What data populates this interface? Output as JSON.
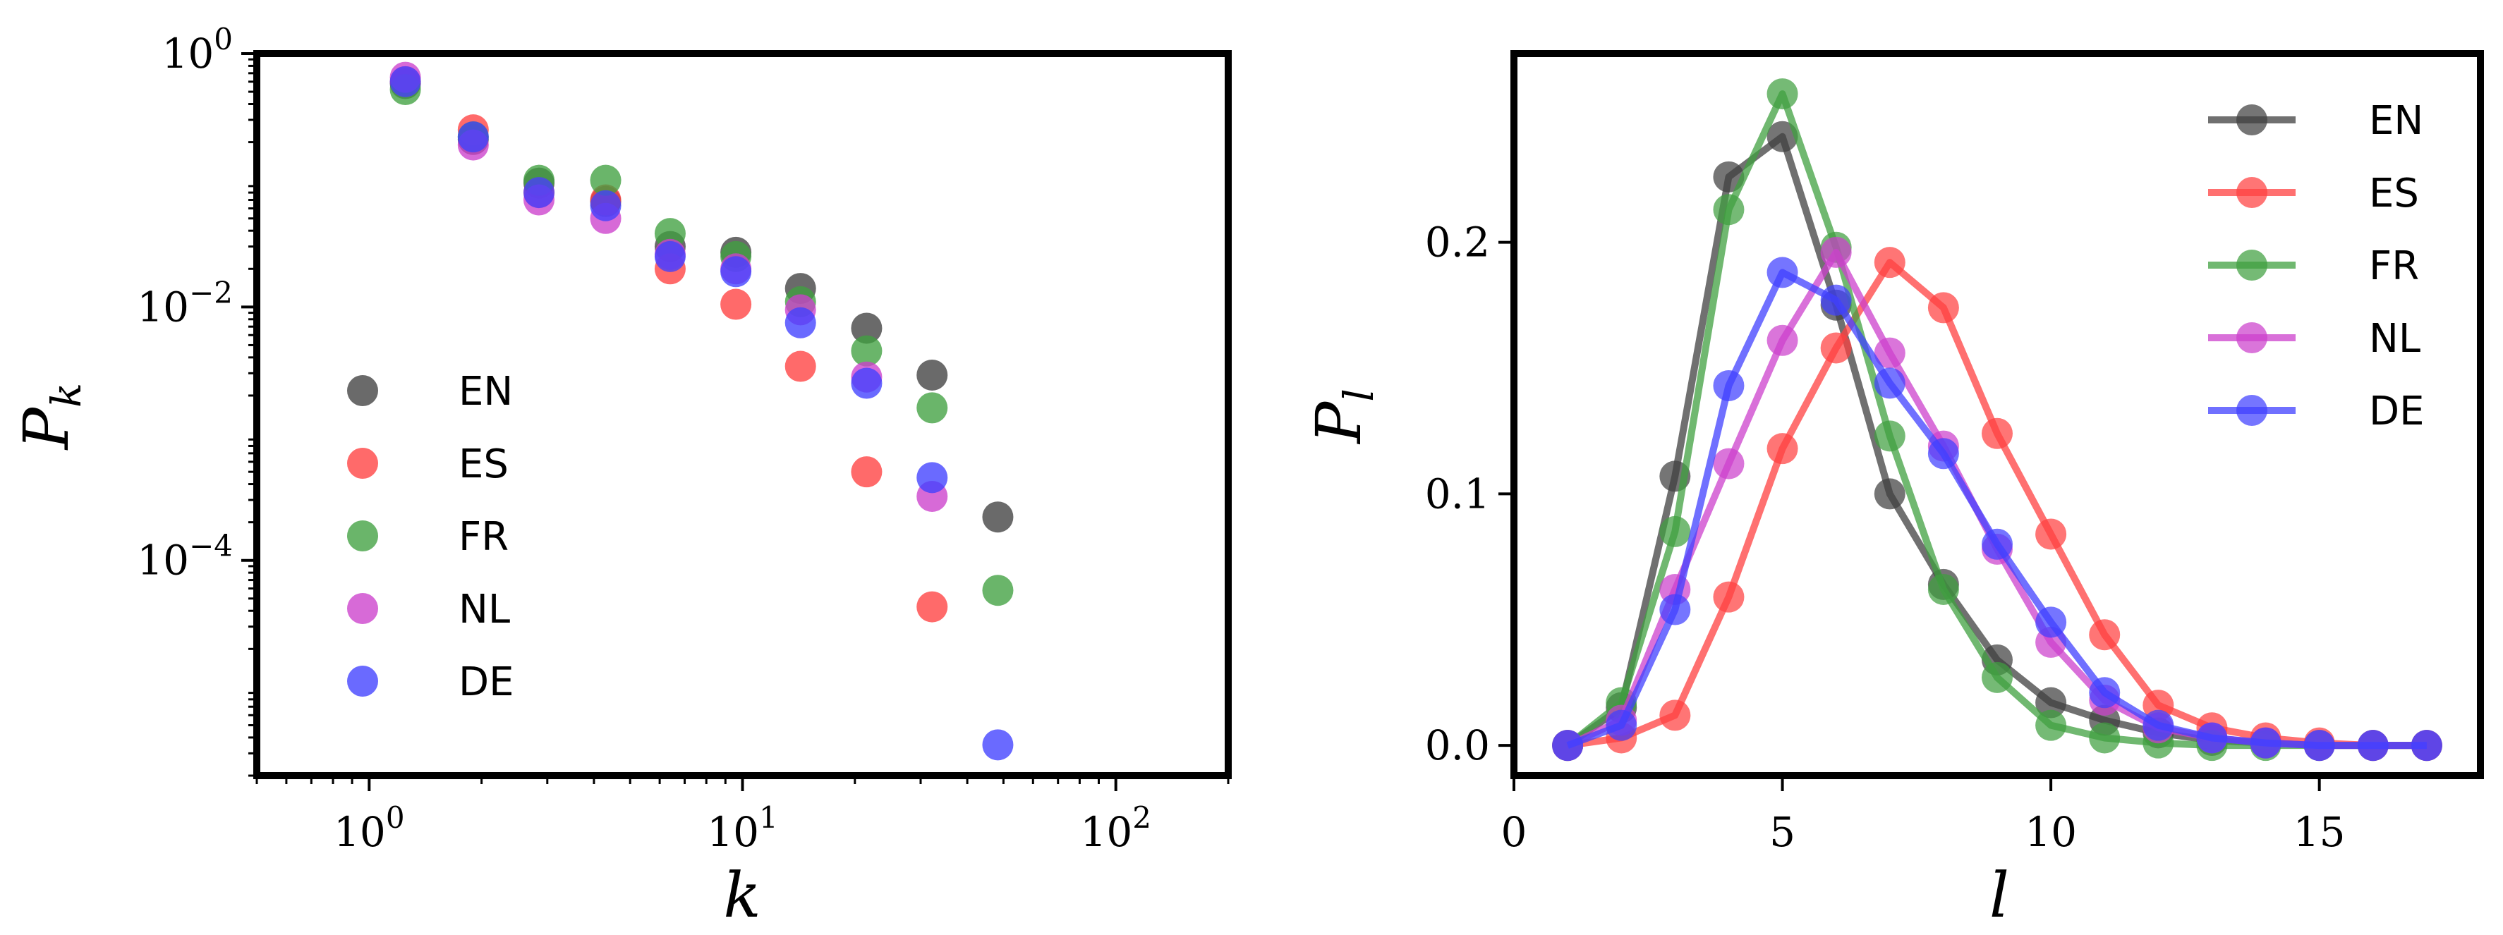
{
  "chart_data": [
    {
      "type": "scatter",
      "xscale": "log",
      "yscale": "log",
      "xlim": [
        0.5,
        200
      ],
      "ylim": [
        2e-06,
        1
      ],
      "xticks": [
        {
          "value": 1,
          "base": "10",
          "exp": "0"
        },
        {
          "value": 10,
          "base": "10",
          "exp": "1"
        },
        {
          "value": 100,
          "base": "10",
          "exp": "2"
        }
      ],
      "yticks": [
        {
          "value": 1,
          "base": "10",
          "exp": "0"
        },
        {
          "value": 0.01,
          "base": "10",
          "exp": "−2"
        },
        {
          "value": 0.0001,
          "base": "10",
          "exp": "−4"
        }
      ],
      "xlabel": "k",
      "ylabel": {
        "base": "P",
        "sub": "k"
      },
      "legend_position": "left",
      "x": [
        1.25,
        1.9,
        2.85,
        4.3,
        6.4,
        9.6,
        14.3,
        21.5,
        32.2,
        48.3
      ],
      "series": [
        {
          "name": "EN",
          "color": "#404040",
          "values": [
            0.58,
            0.21,
            0.095,
            0.068,
            0.03,
            0.027,
            0.014,
            0.0068,
            0.0029,
            0.00022
          ]
        },
        {
          "name": "ES",
          "color": "#ff4040",
          "values": [
            0.6,
            0.25,
            0.08,
            0.07,
            0.02,
            0.0105,
            0.0034,
            0.0005,
            4.3e-05,
            null
          ]
        },
        {
          "name": "FR",
          "color": "#40a040",
          "values": [
            0.52,
            0.22,
            0.1,
            0.1,
            0.038,
            0.025,
            0.011,
            0.0045,
            0.0016,
            5.8e-05
          ]
        },
        {
          "name": "NL",
          "color": "#cc40cc",
          "values": [
            0.65,
            0.19,
            0.07,
            0.05,
            0.026,
            0.02,
            0.0095,
            0.0028,
            0.00032,
            null
          ]
        },
        {
          "name": "DE",
          "color": "#4040ff",
          "values": [
            0.6,
            0.22,
            0.08,
            0.063,
            0.025,
            0.019,
            0.0075,
            0.0025,
            0.00045,
            3.5e-06
          ]
        }
      ]
    },
    {
      "type": "line",
      "xlim": [
        0,
        18
      ],
      "ylim": [
        -0.012,
        0.275
      ],
      "xticks": [
        0,
        5,
        10,
        15
      ],
      "yticks": [
        {
          "value": 0.0,
          "label": "0.0"
        },
        {
          "value": 0.1,
          "label": "0.1"
        },
        {
          "value": 0.2,
          "label": "0.2"
        }
      ],
      "xlabel": "l",
      "ylabel": {
        "base": "P",
        "sub": "l"
      },
      "legend_position": "top-right",
      "x": [
        1,
        2,
        3,
        4,
        5,
        6,
        7,
        8,
        9,
        10,
        11,
        12,
        13,
        14,
        15,
        16,
        17
      ],
      "series": [
        {
          "name": "EN",
          "color": "#404040",
          "values": [
            0.0,
            0.015,
            0.107,
            0.226,
            0.242,
            0.175,
            0.1,
            0.064,
            0.034,
            0.017,
            0.01,
            0.005,
            0.002,
            0.001,
            0.0,
            0.0,
            0.0
          ]
        },
        {
          "name": "ES",
          "color": "#ff4040",
          "values": [
            0.0,
            0.003,
            0.012,
            0.059,
            0.118,
            0.158,
            0.192,
            0.174,
            0.124,
            0.084,
            0.044,
            0.016,
            0.007,
            0.003,
            0.001,
            0.0,
            0.0
          ]
        },
        {
          "name": "FR",
          "color": "#40a040",
          "values": [
            0.0,
            0.017,
            0.085,
            0.213,
            0.259,
            0.198,
            0.123,
            0.062,
            0.027,
            0.008,
            0.003,
            0.001,
            0.0,
            0.0,
            0.0,
            0.0,
            0.0
          ]
        },
        {
          "name": "NL",
          "color": "#cc40cc",
          "values": [
            0.0,
            0.01,
            0.062,
            0.112,
            0.161,
            0.196,
            0.156,
            0.119,
            0.078,
            0.041,
            0.018,
            0.007,
            0.003,
            0.001,
            0.0,
            0.0,
            0.0
          ]
        },
        {
          "name": "DE",
          "color": "#4040ff",
          "values": [
            0.0,
            0.008,
            0.054,
            0.143,
            0.188,
            0.177,
            0.144,
            0.116,
            0.08,
            0.049,
            0.021,
            0.008,
            0.003,
            0.001,
            0.0,
            0.0,
            0.0
          ]
        }
      ]
    }
  ]
}
